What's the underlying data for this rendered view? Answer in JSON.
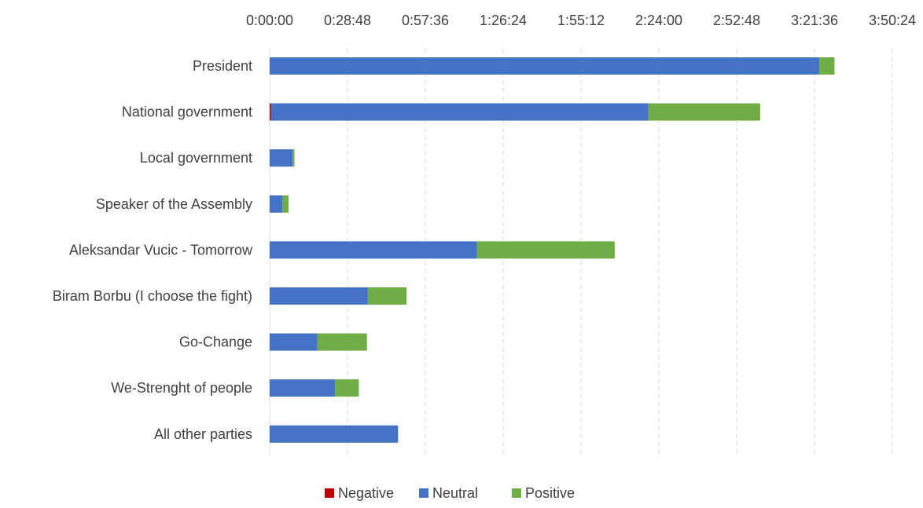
{
  "chart_data": {
    "type": "bar",
    "orientation": "horizontal",
    "stacked": true,
    "value_unit": "h:mm:ss",
    "x_axis_position": "top",
    "grid": "vertical dashed",
    "legend_position": "bottom",
    "xlim": [
      "0:00:00",
      "3:50:24"
    ],
    "x_ticks": [
      "0:00:00",
      "0:28:48",
      "0:57:36",
      "1:26:24",
      "1:55:12",
      "2:24:00",
      "2:52:48",
      "3:21:36",
      "3:50:24"
    ],
    "categories": [
      "President",
      "National government",
      "Local government",
      "Speaker of the Assembly",
      "Aleksandar Vucic - Tomorrow",
      "Biram Borbu (I choose the fight)",
      "Go-Change",
      "We-Strenght of people",
      "All other parties"
    ],
    "series": [
      {
        "name": "Negative",
        "color": "#C00000",
        "values": [
          "0:00:00",
          "0:00:30",
          "0:00:00",
          "0:00:00",
          "0:00:00",
          "0:00:00",
          "0:00:00",
          "0:00:00",
          "0:00:00"
        ]
      },
      {
        "name": "Neutral",
        "color": "#4472C4",
        "values": [
          "3:23:20",
          "2:19:40",
          "0:08:30",
          "0:04:40",
          "1:16:40",
          "0:36:20",
          "0:17:40",
          "0:24:10",
          "0:47:30"
        ]
      },
      {
        "name": "Positive",
        "color": "#70AD47",
        "values": [
          "0:05:40",
          "0:41:20",
          "0:00:40",
          "0:02:20",
          "0:51:00",
          "0:14:20",
          "0:18:20",
          "0:08:50",
          "0:00:00"
        ]
      }
    ]
  }
}
